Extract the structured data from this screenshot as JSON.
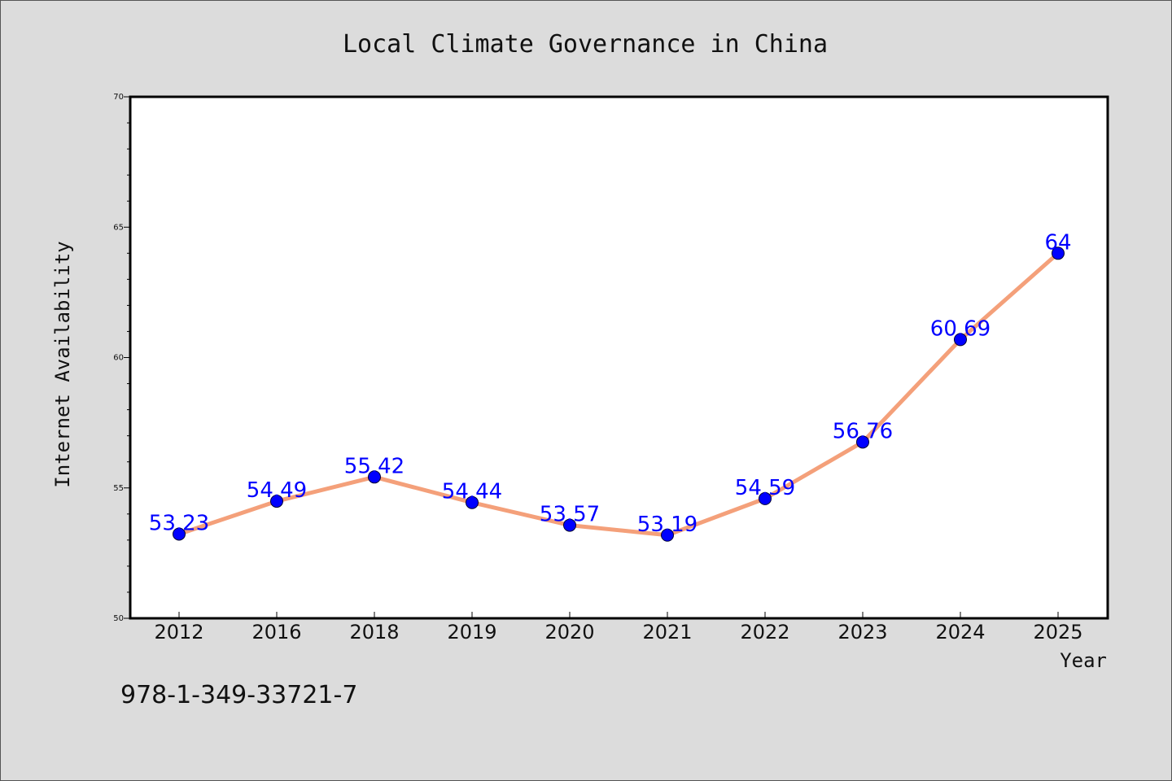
{
  "chart_data": {
    "type": "line",
    "title": "Local Climate Governance in China",
    "xlabel": "Year",
    "ylabel": "Internet Availability",
    "categories": [
      "2012",
      "2016",
      "2018",
      "2019",
      "2020",
      "2021",
      "2022",
      "2023",
      "2024",
      "2025"
    ],
    "series": [
      {
        "values": [
          53.23,
          54.49,
          55.42,
          54.44,
          53.57,
          53.19,
          54.59,
          56.76,
          60.69,
          64
        ]
      }
    ],
    "data_labels": [
      "53.23",
      "54.49",
      "55.42",
      "54.44",
      "53.57",
      "53.19",
      "54.59",
      "56.76",
      "60.69",
      "64"
    ],
    "ylim": [
      50,
      70
    ],
    "yticks": [
      50,
      55,
      60,
      65,
      70
    ],
    "grid": false,
    "line_color": "#f4a07a",
    "marker_color": "#0000ff",
    "label_color": "#0000ff",
    "background_color": "#dcdcdc",
    "plot_background": "#ffffff"
  },
  "footer": {
    "isbn": "978-1-349-33721-7"
  }
}
